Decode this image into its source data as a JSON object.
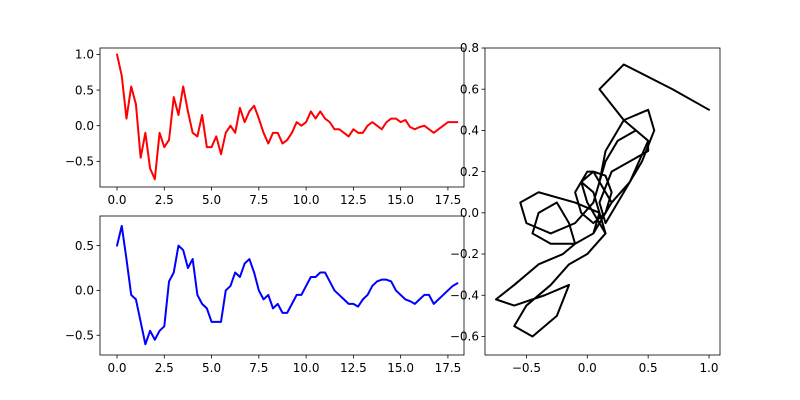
{
  "chart_data": [
    {
      "type": "line",
      "title": "",
      "xlabel": "",
      "ylabel": "",
      "xlim": [
        -0.9,
        18.35
      ],
      "ylim": [
        -0.86,
        1.09
      ],
      "xticks": [
        "0.0",
        "2.5",
        "5.0",
        "7.5",
        "10.0",
        "12.5",
        "15.0",
        "17.5"
      ],
      "yticks": [
        "-0.5",
        "0.0",
        "0.5",
        "1.0"
      ],
      "grid": false,
      "series": [
        {
          "color": "#ff0000",
          "x": [
            0,
            0.25,
            0.5,
            0.75,
            1.0,
            1.25,
            1.5,
            1.75,
            2.0,
            2.25,
            2.5,
            2.75,
            3.0,
            3.25,
            3.5,
            3.75,
            4.0,
            4.25,
            4.5,
            4.75,
            5.0,
            5.25,
            5.5,
            5.75,
            6.0,
            6.25,
            6.5,
            6.75,
            7.0,
            7.25,
            7.5,
            7.75,
            8.0,
            8.25,
            8.5,
            8.75,
            9.0,
            9.25,
            9.5,
            9.75,
            10.0,
            10.25,
            10.5,
            10.75,
            11.0,
            11.25,
            11.5,
            11.75,
            12.0,
            12.25,
            12.5,
            12.75,
            13.0,
            13.25,
            13.5,
            13.75,
            14.0,
            14.25,
            14.5,
            14.75,
            15.0,
            15.25,
            15.5,
            15.75,
            16.0,
            16.25,
            16.5,
            16.75,
            17.0,
            17.25,
            17.5,
            17.75,
            18.0
          ],
          "y": [
            1.0,
            0.7,
            0.1,
            0.55,
            0.3,
            -0.45,
            -0.1,
            -0.6,
            -0.75,
            -0.1,
            -0.3,
            -0.2,
            0.4,
            0.15,
            0.55,
            0.2,
            -0.1,
            -0.15,
            0.15,
            -0.3,
            -0.3,
            -0.15,
            -0.4,
            -0.1,
            0.0,
            -0.1,
            0.25,
            0.05,
            0.2,
            0.28,
            0.1,
            -0.1,
            -0.25,
            -0.1,
            -0.1,
            -0.25,
            -0.2,
            -0.1,
            0.05,
            0.0,
            0.05,
            0.2,
            0.1,
            0.2,
            0.1,
            0.05,
            -0.05,
            -0.05,
            -0.1,
            -0.15,
            -0.05,
            -0.1,
            -0.1,
            0.0,
            0.05,
            0.0,
            -0.05,
            0.05,
            0.1,
            0.1,
            0.05,
            0.08,
            -0.02,
            -0.05,
            -0.02,
            0.0,
            -0.05,
            -0.1,
            -0.05,
            0.0,
            0.05,
            0.05,
            0.05
          ]
        }
      ]
    },
    {
      "type": "line",
      "title": "",
      "xlabel": "",
      "ylabel": "",
      "xlim": [
        -0.9,
        18.35
      ],
      "ylim": [
        -0.72,
        0.83
      ],
      "xticks": [
        "0.0",
        "2.5",
        "5.0",
        "7.5",
        "10.0",
        "12.5",
        "15.0",
        "17.5"
      ],
      "yticks": [
        "-0.5",
        "0.0",
        "0.5"
      ],
      "grid": false,
      "series": [
        {
          "color": "#0000ff",
          "x": [
            0,
            0.25,
            0.5,
            0.75,
            1.0,
            1.25,
            1.5,
            1.75,
            2.0,
            2.25,
            2.5,
            2.75,
            3.0,
            3.25,
            3.5,
            3.75,
            4.0,
            4.25,
            4.5,
            4.75,
            5.0,
            5.25,
            5.5,
            5.75,
            6.0,
            6.25,
            6.5,
            6.75,
            7.0,
            7.25,
            7.5,
            7.75,
            8.0,
            8.25,
            8.5,
            8.75,
            9.0,
            9.25,
            9.5,
            9.75,
            10.0,
            10.25,
            10.5,
            10.75,
            11.0,
            11.25,
            11.5,
            11.75,
            12.0,
            12.25,
            12.5,
            12.75,
            13.0,
            13.25,
            13.5,
            13.75,
            14.0,
            14.25,
            14.5,
            14.75,
            15.0,
            15.25,
            15.5,
            15.75,
            16.0,
            16.25,
            16.5,
            16.75,
            17.0,
            17.25,
            17.5,
            17.75,
            18.0
          ],
          "y": [
            0.5,
            0.72,
            0.35,
            -0.05,
            -0.1,
            -0.35,
            -0.6,
            -0.45,
            -0.55,
            -0.45,
            -0.4,
            0.1,
            0.2,
            0.5,
            0.45,
            0.25,
            0.35,
            -0.05,
            -0.15,
            -0.2,
            -0.35,
            -0.35,
            -0.35,
            0.0,
            0.05,
            0.2,
            0.15,
            0.3,
            0.35,
            0.2,
            0.0,
            -0.1,
            -0.05,
            -0.2,
            -0.15,
            -0.25,
            -0.25,
            -0.15,
            -0.05,
            -0.05,
            0.05,
            0.15,
            0.15,
            0.2,
            0.2,
            0.1,
            0.0,
            -0.05,
            -0.1,
            -0.15,
            -0.15,
            -0.18,
            -0.1,
            -0.05,
            0.05,
            0.1,
            0.12,
            0.12,
            0.1,
            0.0,
            -0.05,
            -0.1,
            -0.12,
            -0.15,
            -0.1,
            -0.05,
            -0.05,
            -0.15,
            -0.1,
            -0.05,
            0.0,
            0.05,
            0.08
          ]
        }
      ]
    },
    {
      "type": "line",
      "title": "",
      "xlabel": "",
      "ylabel": "",
      "xlim": [
        -0.84,
        1.09
      ],
      "ylim": [
        -0.69,
        0.8
      ],
      "xticks": [
        "-0.5",
        "0.0",
        "0.5",
        "1.0"
      ],
      "yticks": [
        "-0.6",
        "-0.4",
        "-0.2",
        "0.0",
        "0.2",
        "0.4",
        "0.6",
        "0.8"
      ],
      "grid": false,
      "series": [
        {
          "color": "#000000",
          "x": [
            1.0,
            0.7,
            0.3,
            0.1,
            0.3,
            0.5,
            0.5,
            0.2,
            0.1,
            0.15,
            0.3,
            0.45,
            0.55,
            0.5,
            0.3,
            0.15,
            0.1,
            0.2,
            0.35,
            0.5,
            0.4,
            0.25,
            0.15,
            0.1,
            0.05,
            -0.1,
            -0.3,
            -0.5,
            -0.55,
            -0.4,
            -0.1,
            0.1,
            0.15,
            0.0,
            -0.15,
            -0.3,
            -0.5,
            -0.6,
            -0.45,
            -0.25,
            -0.15,
            -0.35,
            -0.6,
            -0.75,
            -0.6,
            -0.4,
            -0.2,
            -0.1,
            -0.15,
            -0.25,
            -0.4,
            -0.45,
            -0.3,
            -0.1,
            0.05,
            0.1,
            0.05,
            -0.05,
            -0.1,
            -0.05,
            0.05,
            0.15,
            0.2,
            0.15,
            0.05,
            -0.05,
            0.0,
            0.1,
            0.15,
            0.1,
            0.0,
            -0.05,
            0.0,
            0.05,
            0.1,
            0.15,
            0.2,
            0.15,
            0.1,
            0.05
          ],
          "y": [
            0.5,
            0.6,
            0.72,
            0.6,
            0.45,
            0.35,
            0.3,
            0.2,
            0.05,
            -0.05,
            0.1,
            0.25,
            0.4,
            0.5,
            0.45,
            0.3,
            0.15,
            0.05,
            0.15,
            0.35,
            0.4,
            0.35,
            0.25,
            0.15,
            0.05,
            -0.05,
            -0.1,
            -0.05,
            0.05,
            0.1,
            0.05,
            0.0,
            -0.1,
            -0.2,
            -0.25,
            -0.35,
            -0.45,
            -0.55,
            -0.6,
            -0.5,
            -0.35,
            -0.4,
            -0.45,
            -0.42,
            -0.35,
            -0.25,
            -0.2,
            -0.15,
            -0.05,
            0.05,
            0.0,
            -0.1,
            -0.15,
            -0.15,
            -0.1,
            0.0,
            0.1,
            0.15,
            0.1,
            0.0,
            -0.05,
            0.0,
            0.1,
            0.18,
            0.2,
            0.15,
            0.05,
            -0.05,
            -0.1,
            -0.05,
            0.05,
            0.15,
            0.2,
            0.2,
            0.15,
            0.1,
            0.05,
            0.0,
            -0.05,
            -0.1
          ]
        }
      ]
    }
  ]
}
